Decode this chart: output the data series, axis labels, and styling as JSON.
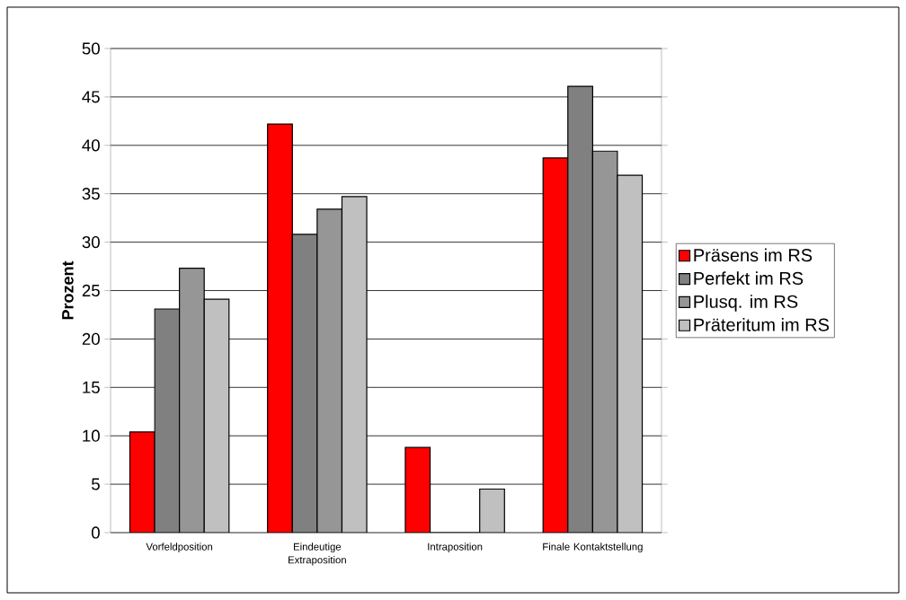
{
  "chart_data": {
    "type": "bar",
    "ylabel": "Prozent",
    "categories": [
      "Vorfeldposition",
      "Eindeutige Extraposition",
      "Intraposition",
      "Finale Kontaktstellung"
    ],
    "series": [
      {
        "name": "Präsens im RS",
        "color": "#ff0000",
        "values": [
          10.4,
          42.2,
          8.8,
          38.7
        ]
      },
      {
        "name": "Perfekt im RS",
        "color": "#808080",
        "values": [
          23.1,
          30.8,
          0,
          46.1
        ]
      },
      {
        "name": "Plusq. im RS",
        "color": "#969696",
        "values": [
          27.3,
          33.4,
          0,
          39.4
        ]
      },
      {
        "name": "Präteritum im RS",
        "color": "#c0c0c0",
        "values": [
          24.1,
          34.7,
          4.5,
          36.9
        ]
      }
    ],
    "ylim": [
      0,
      50
    ],
    "yticks": [
      0,
      5,
      10,
      15,
      20,
      25,
      30,
      35,
      40,
      45,
      50
    ],
    "grid": "y",
    "legend": "right"
  }
}
